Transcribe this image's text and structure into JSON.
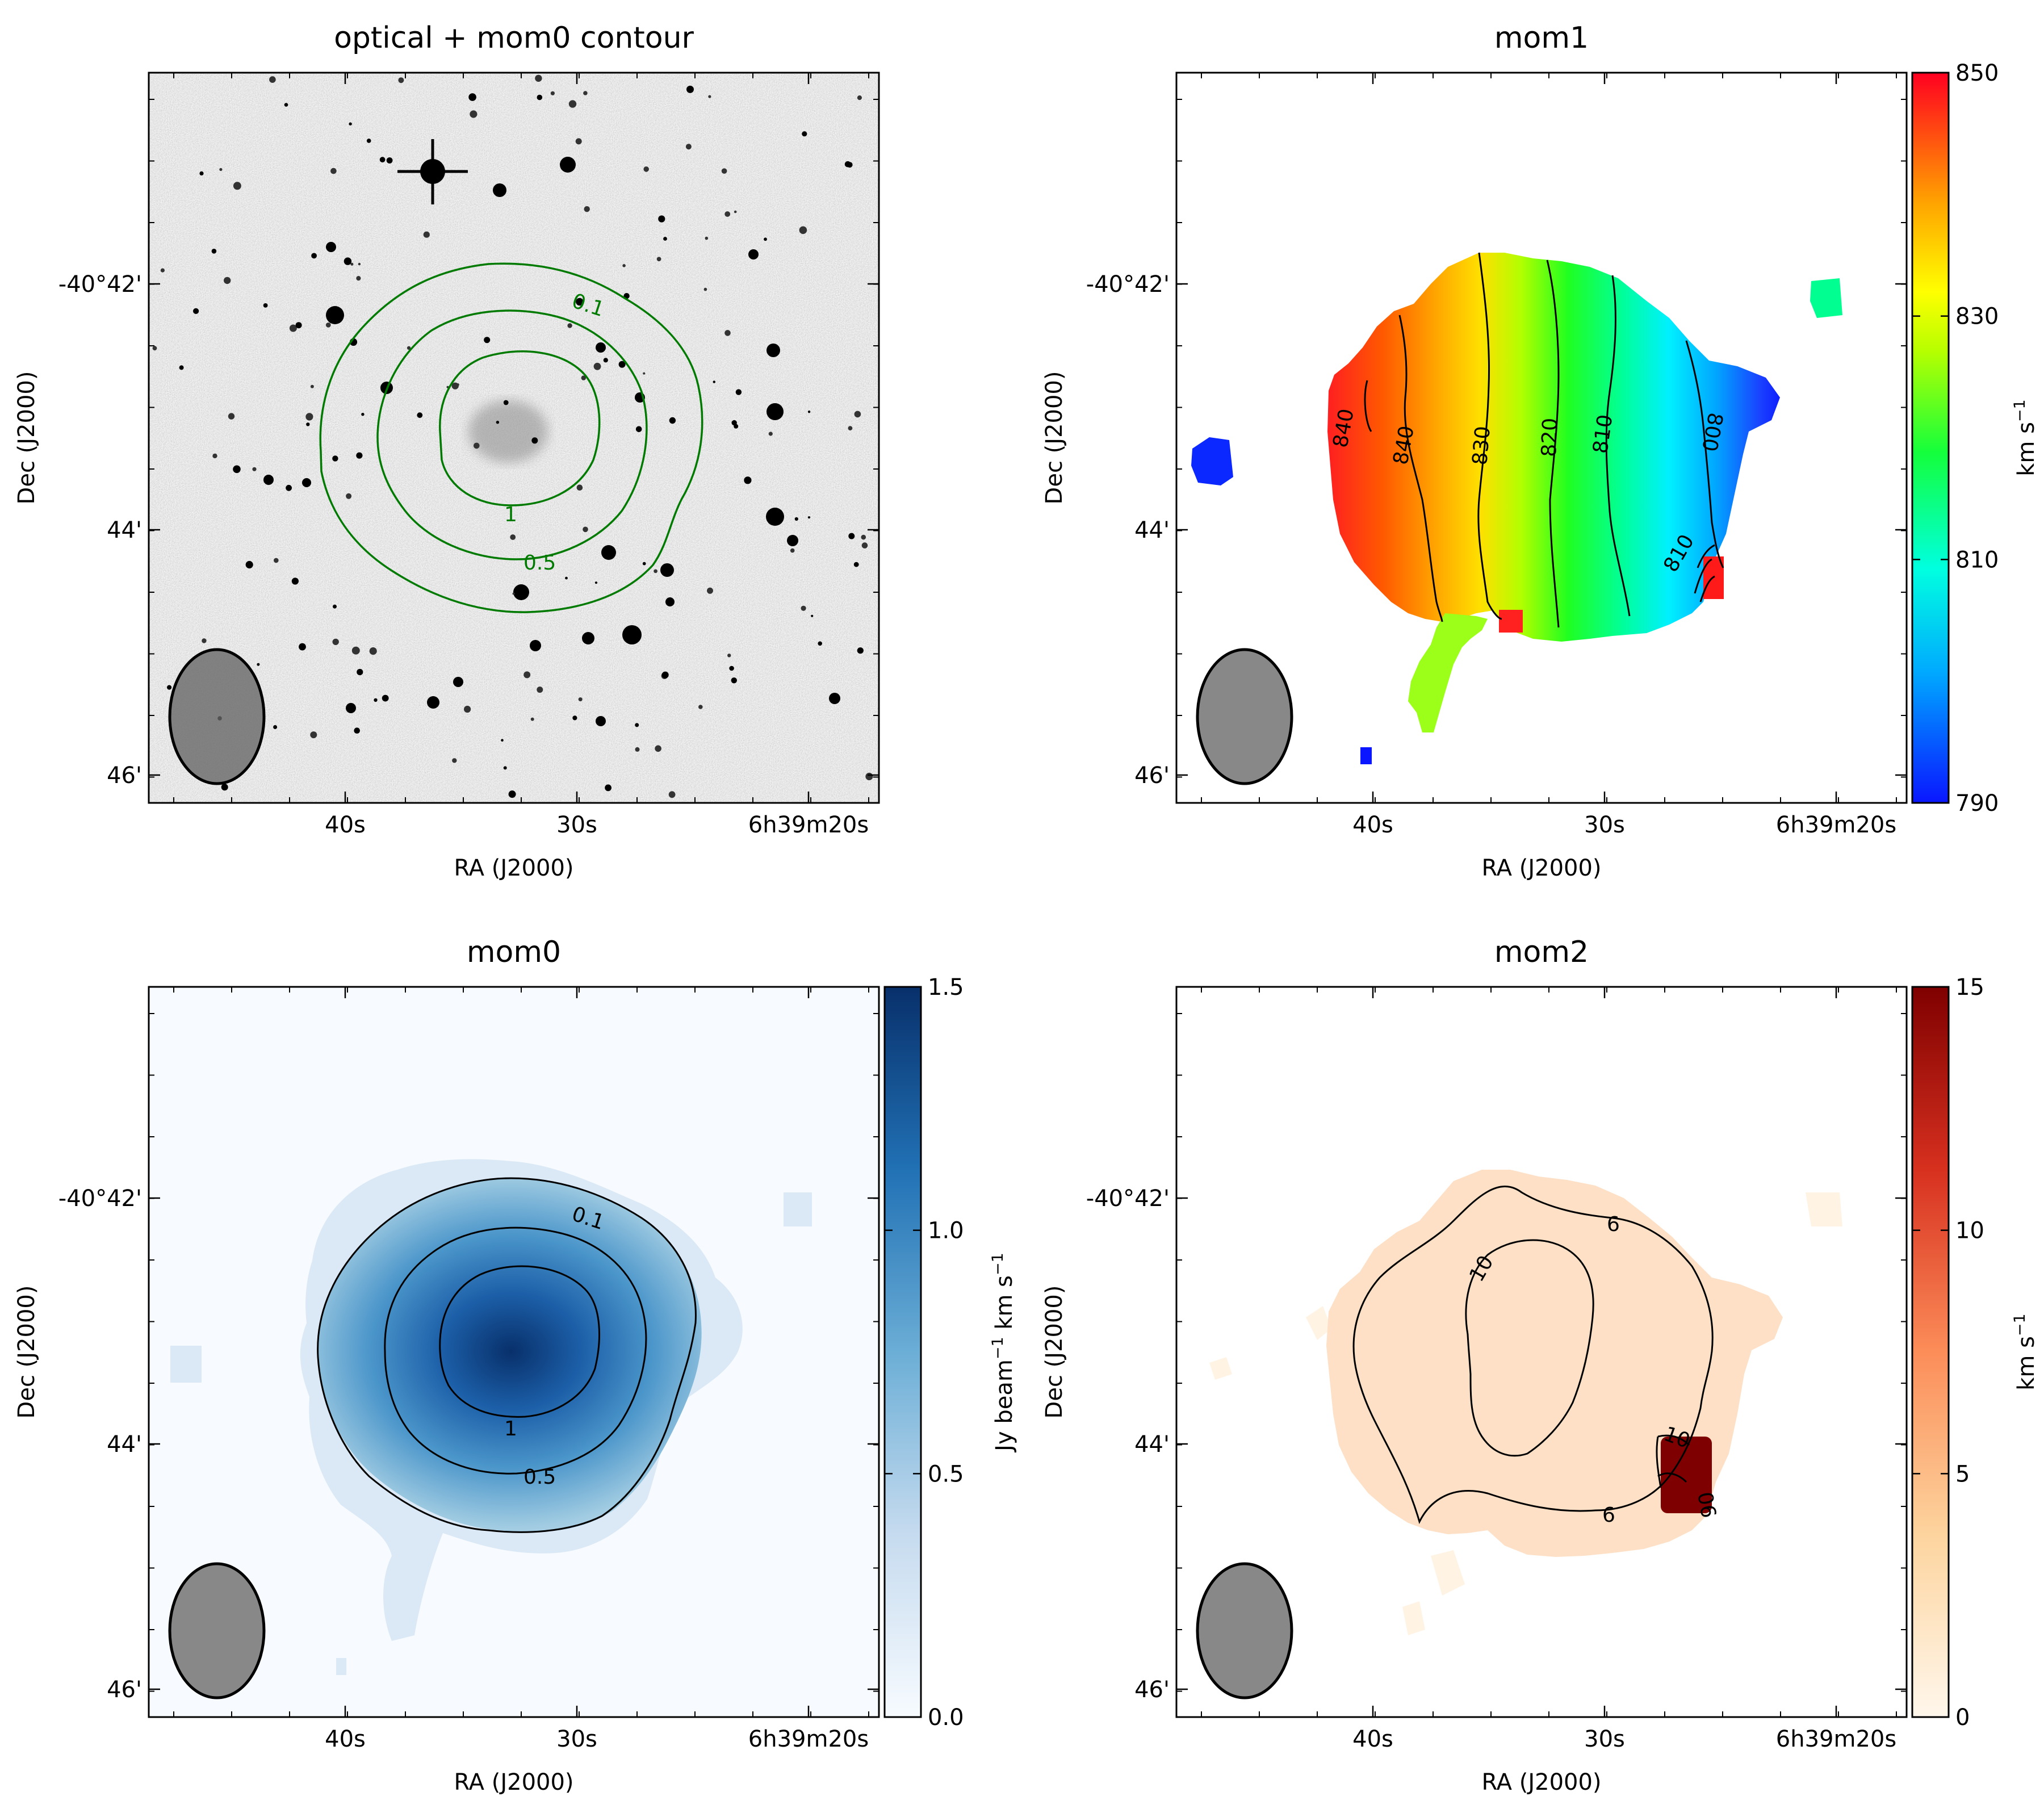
{
  "figure": {
    "panels": [
      {
        "id": "optical",
        "title": "optical + mom0 contour",
        "image": "optical grayscale",
        "xlabel": "RA (J2000)",
        "ylabel": "Dec (J2000)",
        "xticks": [
          "40s",
          "30s",
          "6h39m20s"
        ],
        "yticks": [
          "-40°42'",
          "44'",
          "46'"
        ],
        "contour_color": "#007a00",
        "contour_labels": [
          "0.1",
          "1",
          "0.5"
        ]
      },
      {
        "id": "mom1",
        "title": "mom1",
        "xlabel": "RA (J2000)",
        "ylabel": "Dec (J2000)",
        "xticks": [
          "40s",
          "30s",
          "6h39m20s"
        ],
        "yticks": [
          "-40°42'",
          "44'",
          "46'"
        ],
        "colorbar": {
          "ticks": [
            "850",
            "830",
            "810",
            "790"
          ],
          "label": "km s",
          "label_sup": "−1",
          "range": [
            790,
            850
          ],
          "cmap": "gist_rainbow"
        },
        "contour_labels": [
          "840",
          "840",
          "830",
          "820",
          "810",
          "800",
          "810"
        ]
      },
      {
        "id": "mom0",
        "title": "mom0",
        "xlabel": "RA (J2000)",
        "ylabel": "Dec (J2000)",
        "xticks": [
          "40s",
          "30s",
          "6h39m20s"
        ],
        "yticks": [
          "-40°42'",
          "44'",
          "46'"
        ],
        "colorbar": {
          "ticks": [
            "1.5",
            "1.0",
            "0.5",
            "0.0"
          ],
          "label_parts": [
            "Jy beam",
            "−1",
            " km s",
            "−1"
          ],
          "range": [
            0,
            1.5
          ],
          "cmap": "Blues"
        },
        "contour_labels": [
          "0.1",
          "1",
          "0.5"
        ]
      },
      {
        "id": "mom2",
        "title": "mom2",
        "xlabel": "RA (J2000)",
        "ylabel": "Dec (J2000)",
        "xticks": [
          "40s",
          "30s",
          "6h39m20s"
        ],
        "yticks": [
          "-40°42'",
          "44'",
          "46'"
        ],
        "colorbar": {
          "ticks": [
            "15",
            "10",
            "5",
            "0"
          ],
          "label": "km s",
          "label_sup": "−1",
          "range": [
            0,
            15
          ],
          "cmap": "OrRd"
        },
        "contour_labels": [
          "6",
          "10",
          "10",
          "6",
          "06"
        ]
      }
    ]
  },
  "chart_data": [
    {
      "type": "heatmap",
      "title": "optical + mom0 contour",
      "xlabel": "RA (J2000)",
      "ylabel": "Dec (J2000)",
      "x_ticks": [
        "40s",
        "30s",
        "6h39m20s"
      ],
      "y_ticks": [
        "-40°42'",
        "44'",
        "46'"
      ],
      "contour_levels": [
        0.1,
        0.5,
        1
      ],
      "beam": "ellipse lower-left"
    },
    {
      "type": "heatmap",
      "title": "mom1",
      "xlabel": "RA (J2000)",
      "ylabel": "Dec (J2000)",
      "x_ticks": [
        "40s",
        "30s",
        "6h39m20s"
      ],
      "y_ticks": [
        "-40°42'",
        "44'",
        "46'"
      ],
      "colorbar_range": [
        790,
        850
      ],
      "colorbar_ticks": [
        790,
        810,
        830,
        850
      ],
      "colorbar_label": "km s^-1",
      "contour_levels": [
        800,
        810,
        820,
        830,
        840
      ],
      "gradient": "850 at east (left) to 790 at west (right)"
    },
    {
      "type": "heatmap",
      "title": "mom0",
      "xlabel": "RA (J2000)",
      "ylabel": "Dec (J2000)",
      "x_ticks": [
        "40s",
        "30s",
        "6h39m20s"
      ],
      "y_ticks": [
        "-40°42'",
        "44'",
        "46'"
      ],
      "colorbar_range": [
        0,
        1.5
      ],
      "colorbar_ticks": [
        0.0,
        0.5,
        1.0,
        1.5
      ],
      "colorbar_label": "Jy beam^-1 km s^-1",
      "contour_levels": [
        0.1,
        0.5,
        1
      ]
    },
    {
      "type": "heatmap",
      "title": "mom2",
      "xlabel": "RA (J2000)",
      "ylabel": "Dec (J2000)",
      "x_ticks": [
        "40s",
        "30s",
        "6h39m20s"
      ],
      "y_ticks": [
        "-40°42'",
        "44'",
        "46'"
      ],
      "colorbar_range": [
        0,
        15
      ],
      "colorbar_ticks": [
        0,
        5,
        10,
        15
      ],
      "colorbar_label": "km s^-1",
      "contour_levels": [
        6,
        10
      ]
    }
  ]
}
